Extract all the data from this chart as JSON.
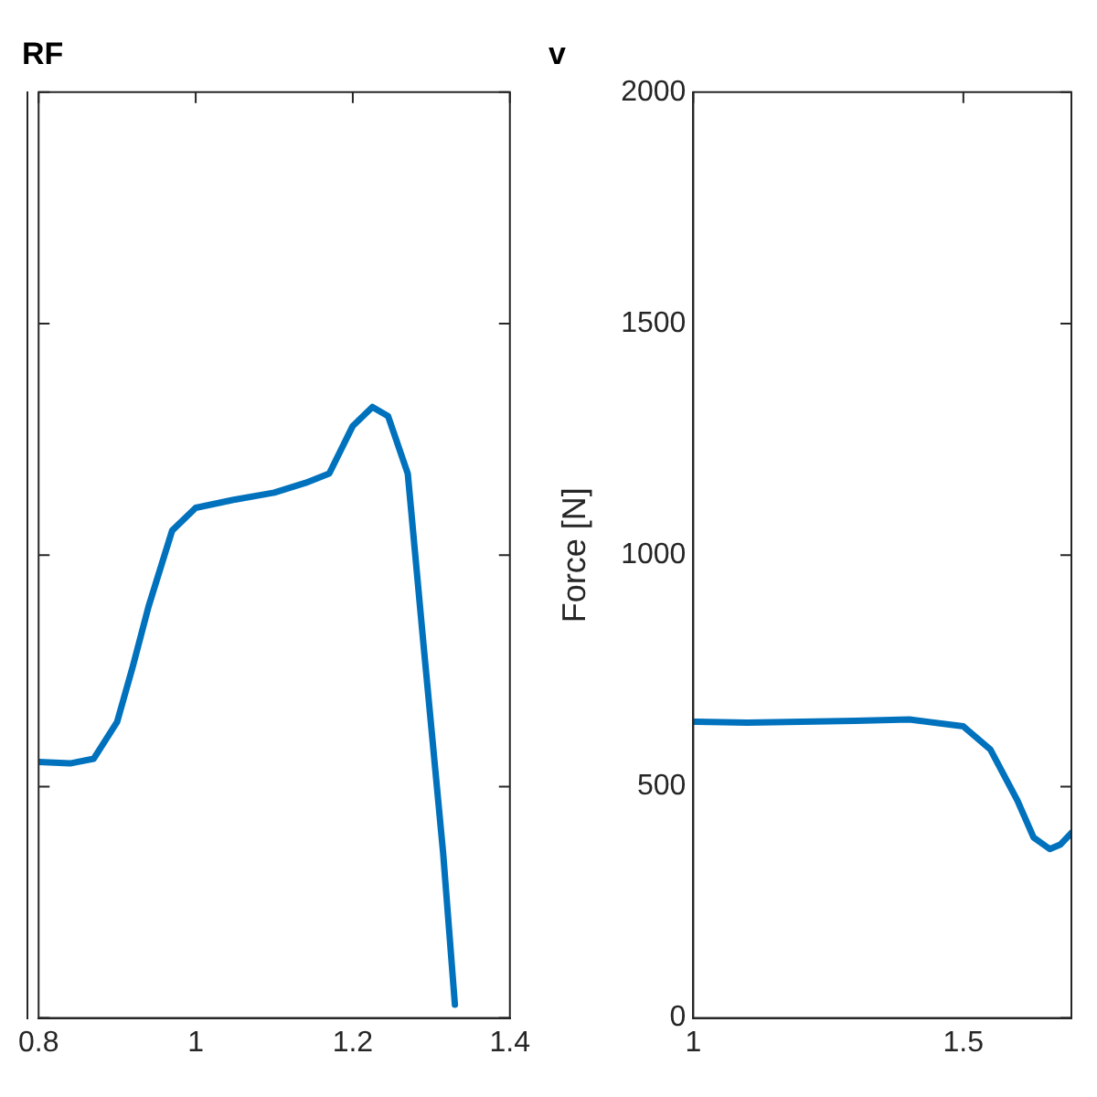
{
  "chart_data": [
    {
      "type": "line",
      "title": "RF",
      "color": "#0072bd",
      "marker": "none",
      "line_style": "solid",
      "grid": false,
      "legend": false,
      "tick_labels": "x",
      "x": [
        0.8,
        0.84,
        0.87,
        0.9,
        0.92,
        0.94,
        0.97,
        1.0,
        1.05,
        1.1,
        1.14,
        1.17,
        1.2,
        1.225,
        1.245,
        1.27,
        1.29,
        1.315,
        1.33
      ],
      "values": [
        553,
        550,
        560,
        640,
        760,
        889,
        1053,
        1102,
        1120,
        1135,
        1156,
        1176,
        1279,
        1320,
        1300,
        1176,
        807,
        357,
        29
      ],
      "xlim": [
        0.8,
        1.4
      ],
      "xticks": [
        0.8,
        1,
        1.2,
        1.4
      ],
      "ylim": [
        0,
        2000
      ],
      "yticks": [
        0,
        500,
        1000,
        1500,
        2000
      ]
    },
    {
      "type": "line",
      "title": "v",
      "ylabel": "Force [N]",
      "color": "#0072bd",
      "marker": "none",
      "line_style": "solid",
      "grid": false,
      "legend": false,
      "x": [
        1.0,
        1.1,
        1.2,
        1.3,
        1.4,
        1.5,
        1.55,
        1.6,
        1.63,
        1.66,
        1.68,
        1.7
      ],
      "values": [
        640,
        638,
        640,
        642,
        645,
        630,
        580,
        470,
        390,
        365,
        375,
        400
      ],
      "xlim": [
        1,
        1.7
      ],
      "xticks": [
        1,
        1.5
      ],
      "ylim": [
        0,
        2000
      ],
      "yticks": [
        0,
        500,
        1000,
        1500,
        2000
      ]
    }
  ]
}
